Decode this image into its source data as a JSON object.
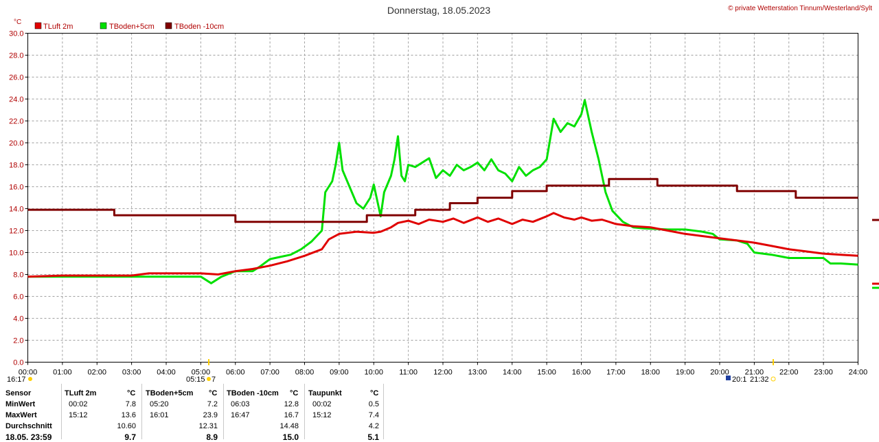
{
  "header": {
    "title": "Donnerstag, 18.05.2023",
    "copyright": "© private Wetterstation Tinnum/Westerland/Sylt",
    "unit": "°C"
  },
  "chart_data": {
    "type": "line",
    "ylim": [
      0,
      30
    ],
    "y_ticks": [
      "0.0",
      "2.0",
      "4.0",
      "6.0",
      "8.0",
      "10.0",
      "12.0",
      "14.0",
      "16.0",
      "18.0",
      "20.0",
      "22.0",
      "24.0",
      "26.0",
      "28.0",
      "30.0"
    ],
    "x_ticks": [
      "00:00",
      "01:00",
      "02:00",
      "03:00",
      "04:00",
      "05:00",
      "06:00",
      "07:00",
      "08:00",
      "09:00",
      "10:00",
      "11:00",
      "12:00",
      "13:00",
      "14:00",
      "15:00",
      "16:00",
      "17:00",
      "18:00",
      "19:00",
      "20:00",
      "21:00",
      "22:00",
      "23:00",
      "24:00"
    ],
    "grid": true,
    "legend_position": "top-left",
    "series": [
      {
        "name": "TLuft 2m",
        "color": "#e00000",
        "x": [
          0,
          1,
          2,
          3,
          3.5,
          4,
          5,
          5.5,
          6,
          6.5,
          7,
          7.5,
          8,
          8.5,
          8.7,
          9,
          9.5,
          10,
          10.2,
          10.5,
          10.7,
          11,
          11.3,
          11.6,
          12,
          12.3,
          12.6,
          13,
          13.3,
          13.6,
          14,
          14.3,
          14.6,
          15,
          15.2,
          15.5,
          15.8,
          16,
          16.3,
          16.6,
          17,
          17.5,
          18,
          18.5,
          19,
          19.5,
          20,
          20.5,
          21,
          21.5,
          22,
          22.5,
          23,
          23.5,
          24
        ],
        "y": [
          7.8,
          7.9,
          7.9,
          7.9,
          8.1,
          8.1,
          8.1,
          8.0,
          8.3,
          8.5,
          8.8,
          9.2,
          9.7,
          10.3,
          11.2,
          11.7,
          11.9,
          11.8,
          11.9,
          12.3,
          12.7,
          12.9,
          12.6,
          13.0,
          12.8,
          13.1,
          12.7,
          13.2,
          12.8,
          13.1,
          12.6,
          13.0,
          12.8,
          13.3,
          13.6,
          13.2,
          13.0,
          13.2,
          12.9,
          13.0,
          12.6,
          12.4,
          12.3,
          12.0,
          11.7,
          11.5,
          11.3,
          11.1,
          10.9,
          10.6,
          10.3,
          10.1,
          9.9,
          9.8,
          9.7
        ]
      },
      {
        "name": "TBoden+5cm",
        "color": "#00e000",
        "x": [
          0,
          1,
          2,
          3,
          4,
          5,
          5.3,
          5.6,
          6,
          6.5,
          6.7,
          7.0,
          7.3,
          7.6,
          7.9,
          8.2,
          8.5,
          8.6,
          8.8,
          8.9,
          9.0,
          9.1,
          9.3,
          9.5,
          9.7,
          9.9,
          10.0,
          10.2,
          10.3,
          10.5,
          10.6,
          10.7,
          10.8,
          10.9,
          11.0,
          11.2,
          11.4,
          11.6,
          11.8,
          12.0,
          12.2,
          12.4,
          12.6,
          12.8,
          13.0,
          13.2,
          13.4,
          13.6,
          13.8,
          14.0,
          14.2,
          14.4,
          14.6,
          14.8,
          15.0,
          15.2,
          15.4,
          15.6,
          15.8,
          16.0,
          16.1,
          16.3,
          16.5,
          16.7,
          16.9,
          17.2,
          17.5,
          17.8,
          18.5,
          19.0,
          19.5,
          19.8,
          20.0,
          20.5,
          20.8,
          21.0,
          21.5,
          22.0,
          22.5,
          23.0,
          23.2,
          23.5,
          24.0
        ],
        "y": [
          7.8,
          7.8,
          7.8,
          7.8,
          7.8,
          7.8,
          7.2,
          7.8,
          8.3,
          8.3,
          8.7,
          9.4,
          9.6,
          9.8,
          10.3,
          11.0,
          12.0,
          15.5,
          16.5,
          18.0,
          20.0,
          17.5,
          16.0,
          14.5,
          14.0,
          15.0,
          16.2,
          13.3,
          15.5,
          17.0,
          18.5,
          20.6,
          17.0,
          16.5,
          18.0,
          17.8,
          18.2,
          18.6,
          16.8,
          17.5,
          17.0,
          18.0,
          17.5,
          17.8,
          18.2,
          17.5,
          18.5,
          17.5,
          17.2,
          16.5,
          17.8,
          17.0,
          17.5,
          17.8,
          18.5,
          22.2,
          21.0,
          21.8,
          21.5,
          22.6,
          23.9,
          21.0,
          18.5,
          15.5,
          13.8,
          12.8,
          12.3,
          12.2,
          12.1,
          12.1,
          11.9,
          11.7,
          11.2,
          11.1,
          10.8,
          10.0,
          9.8,
          9.5,
          9.5,
          9.5,
          9.0,
          9.0,
          8.9
        ]
      },
      {
        "name": "TBoden -10cm",
        "color": "#800000",
        "x": [
          0,
          2.5,
          2.5,
          6.0,
          6.0,
          9.8,
          9.8,
          11.2,
          11.2,
          12.2,
          12.2,
          13.0,
          13.0,
          14.0,
          14.0,
          15.0,
          15.0,
          16.8,
          16.8,
          18.2,
          18.2,
          20.5,
          20.5,
          22.2,
          22.2,
          24
        ],
        "y": [
          13.9,
          13.9,
          13.4,
          13.4,
          12.8,
          12.8,
          13.4,
          13.4,
          13.9,
          13.9,
          14.5,
          14.5,
          15.0,
          15.0,
          15.6,
          15.6,
          16.1,
          16.1,
          16.7,
          16.7,
          16.1,
          16.1,
          15.6,
          15.6,
          15.0,
          15.0
        ]
      }
    ]
  },
  "time_markers": {
    "left_label": "16:17",
    "sunrise_label": "05:15",
    "sunrise_suffix": "7",
    "sunset_label": "20:1",
    "moon_label": "21:32"
  },
  "stats": {
    "headers": [
      "Sensor",
      "TLuft 2m",
      "°C",
      "TBoden+5cm",
      "°C",
      "TBoden -10cm",
      "°C",
      "Taupunkt",
      "°C"
    ],
    "rows": [
      {
        "label": "MinWert",
        "cols": [
          "00:02",
          "7.8",
          "05:20",
          "7.2",
          "06:03",
          "12.8",
          "00:02",
          "0.5"
        ]
      },
      {
        "label": "MaxWert",
        "cols": [
          "15:12",
          "13.6",
          "16:01",
          "23.9",
          "16:47",
          "16.7",
          "15:12",
          "7.4"
        ]
      },
      {
        "label": "Durchschnitt",
        "cols": [
          "",
          "10.60",
          "",
          "12.31",
          "",
          "14.48",
          "",
          "4.2"
        ]
      },
      {
        "label": "18.05. 23:59",
        "cols": [
          "",
          "9.7",
          "",
          "8.9",
          "",
          "15.0",
          "",
          "5.1"
        ]
      }
    ]
  }
}
